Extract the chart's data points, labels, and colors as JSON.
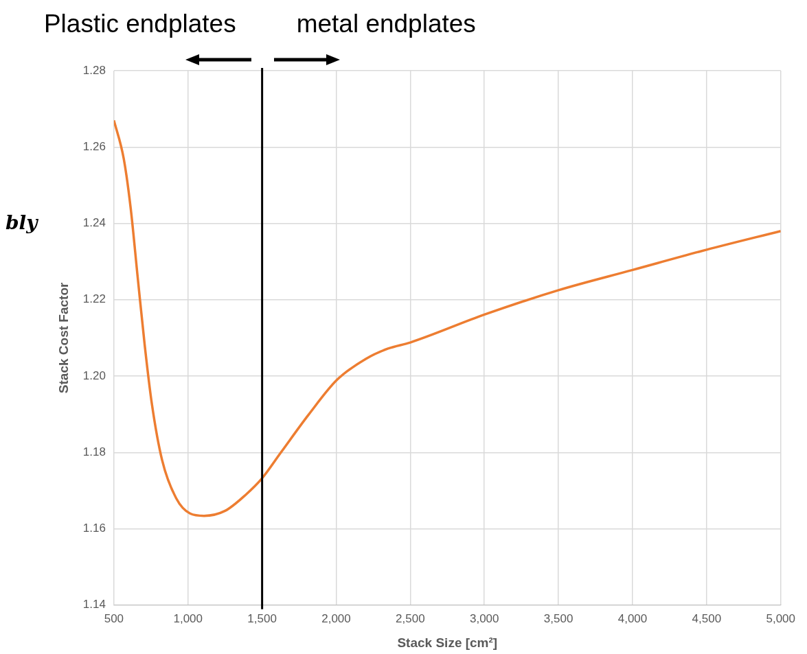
{
  "chart_data": {
    "type": "line",
    "xlabel": "Stack Size [cm²]",
    "ylabel": "Stack Cost Factor",
    "annotations": [
      "Plastic endplates",
      "metal endplates",
      "bly"
    ],
    "xlim": [
      500,
      5000
    ],
    "xticks": [
      {
        "value": 500,
        "label": "500"
      },
      {
        "value": 1000,
        "label": "1,000"
      },
      {
        "value": 1500,
        "label": "1,500"
      },
      {
        "value": 2000,
        "label": "2,000"
      },
      {
        "value": 2500,
        "label": "2,500"
      },
      {
        "value": 3000,
        "label": "3,000"
      },
      {
        "value": 3500,
        "label": "3,500"
      },
      {
        "value": 4000,
        "label": "4,000"
      },
      {
        "value": 4500,
        "label": "4,500"
      },
      {
        "value": 5000,
        "label": "5,000"
      }
    ],
    "ylim": [
      1.14,
      1.28
    ],
    "yticks": [
      {
        "value": 1.14,
        "label": "1.14"
      },
      {
        "value": 1.16,
        "label": "1.16"
      },
      {
        "value": 1.18,
        "label": "1.18"
      },
      {
        "value": 1.2,
        "label": "1.20"
      },
      {
        "value": 1.22,
        "label": "1.22"
      },
      {
        "value": 1.24,
        "label": "1.24"
      },
      {
        "value": 1.26,
        "label": "1.26"
      },
      {
        "value": 1.28,
        "label": "1.28"
      }
    ],
    "grid": true,
    "legend": false,
    "marker": "none",
    "line_style": "solid",
    "ref_lines": [
      {
        "axis": "x",
        "value": 1500,
        "color": "#000000"
      }
    ],
    "series": [
      {
        "color": "#ed7d31",
        "x": [
          500,
          566,
          613,
          660,
          708,
          755,
          825,
          920,
          1014,
          1108,
          1250,
          1392,
          1495,
          1627,
          1816,
          2005,
          2200,
          2350,
          2500,
          3000,
          3500,
          4000,
          4500,
          5000
        ],
        "values": [
          1.267,
          1.257,
          1.244,
          1.226,
          1.208,
          1.193,
          1.178,
          1.168,
          1.164,
          1.1634,
          1.1647,
          1.169,
          1.173,
          1.18,
          1.19,
          1.199,
          1.2045,
          1.2072,
          1.2088,
          1.2161,
          1.2225,
          1.2278,
          1.2331,
          1.238
        ]
      }
    ]
  }
}
